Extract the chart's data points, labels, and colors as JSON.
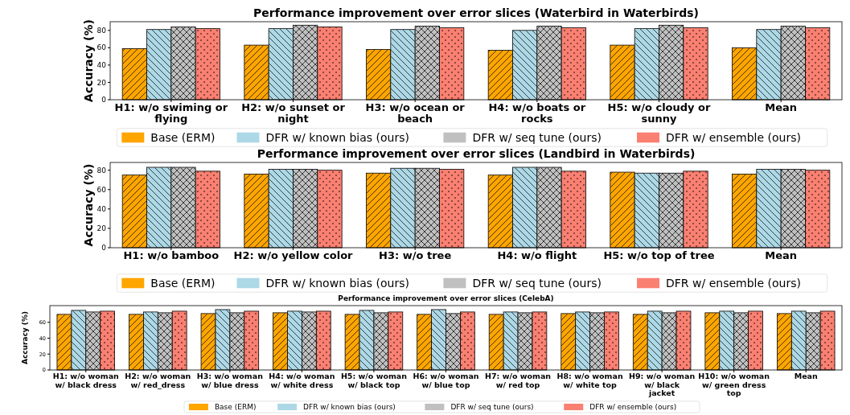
{
  "chart_data": [
    {
      "type": "bar",
      "title": "Performance improvement over error slices (Waterbird in Waterbirds)",
      "ylabel": "Accuracy (%)",
      "categories": [
        "H1: w/o swiming or flying",
        "H2: w/o sunset or night",
        "H3: w/o ocean or beach",
        "H4: w/o boats or rocks",
        "H5: w/o cloudy or sunny",
        "Mean"
      ],
      "ylim": [
        0,
        90
      ],
      "yticks": [
        0,
        20,
        40,
        60,
        80
      ],
      "legend": "bottom",
      "series": [
        {
          "name": "Base (ERM)",
          "color": "#ffa500",
          "values": [
            59,
            63,
            58,
            57,
            63,
            60
          ]
        },
        {
          "name": "DFR w/ known bias (ours)",
          "color": "#add8e6",
          "values": [
            81,
            82,
            81,
            80,
            82,
            81
          ]
        },
        {
          "name": "DFR w/ seq tune (ours)",
          "color": "#c0c0c0",
          "values": [
            84,
            86,
            85,
            85,
            86,
            85
          ]
        },
        {
          "name": "DFR w/ ensemble (ours)",
          "color": "#fa8072",
          "values": [
            82,
            84,
            83,
            83,
            83,
            83
          ]
        }
      ]
    },
    {
      "type": "bar",
      "title": "Performance improvement over error slices (Landbird in Waterbirds)",
      "ylabel": "Accuracy (%)",
      "categories": [
        "H1: w/o bamboo",
        "H2: w/o yellow color",
        "H3: w/o tree",
        "H4: w/o flight",
        "H5: w/o top of tree",
        "Mean"
      ],
      "ylim": [
        0,
        88
      ],
      "yticks": [
        0,
        20,
        40,
        60,
        80
      ],
      "legend": "bottom",
      "series": [
        {
          "name": "Base (ERM)",
          "color": "#ffa500",
          "values": [
            75,
            76,
            77,
            75,
            78,
            76
          ]
        },
        {
          "name": "DFR w/ known bias (ours)",
          "color": "#add8e6",
          "values": [
            83,
            81,
            82,
            83,
            77,
            81
          ]
        },
        {
          "name": "DFR w/ seq tune (ours)",
          "color": "#c0c0c0",
          "values": [
            83,
            81,
            82,
            83,
            77,
            81
          ]
        },
        {
          "name": "DFR w/ ensemble (ours)",
          "color": "#fa8072",
          "values": [
            79,
            80,
            81,
            79,
            79,
            80
          ]
        }
      ]
    },
    {
      "type": "bar",
      "title": "Performance improvement over error slices (CelebA)",
      "ylabel": "Accuracy (%)",
      "categories": [
        "H1: w/o woman w/ black dress",
        "H2: w/o woman w/ red_dress",
        "H3: w/o woman w/ blue dress",
        "H4: w/o woman w/ white dress",
        "H5: w/o woman w/ black top",
        "H6: w/o woman w/ blue top",
        "H7: w/o woman w/ red top",
        "H8: w/o woman w/ white top",
        "H9: w/o woman w/ black jacket",
        "H10: w/o woman w/ green dress top",
        "Mean"
      ],
      "ylim": [
        0,
        81
      ],
      "yticks": [
        0,
        20,
        40,
        60
      ],
      "legend": "bottom",
      "series": [
        {
          "name": "Base (ERM)",
          "color": "#ffa500",
          "values": [
            70,
            70,
            71,
            72,
            70,
            70,
            70,
            71,
            70,
            72,
            71
          ]
        },
        {
          "name": "DFR w/ known bias (ours)",
          "color": "#add8e6",
          "values": [
            75,
            73,
            76,
            74,
            75,
            76,
            73,
            73,
            74,
            74,
            74
          ]
        },
        {
          "name": "DFR w/ seq tune (ours)",
          "color": "#c0c0c0",
          "values": [
            73,
            72,
            72,
            73,
            72,
            71,
            72,
            72,
            72,
            72,
            72
          ]
        },
        {
          "name": "DFR w/ ensemble (ours)",
          "color": "#fa8072",
          "values": [
            74,
            74,
            74,
            74,
            73,
            73,
            73,
            73,
            74,
            74,
            74
          ]
        }
      ]
    }
  ]
}
